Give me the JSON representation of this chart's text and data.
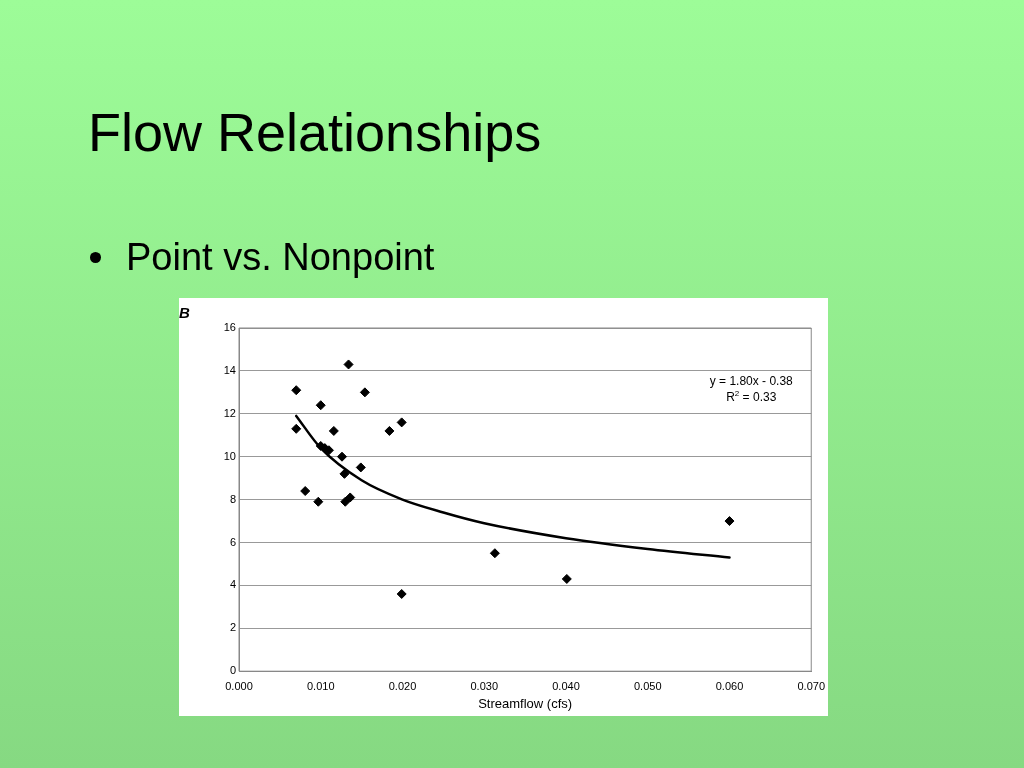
{
  "chart_data": {
    "type": "scatter",
    "title": "Flow Relationships",
    "subtitle": "Point vs. Nonpoint",
    "xlabel": "Streamflow (cfs)",
    "annotations": [
      "B",
      "y = 1.80x - 0.38",
      "R$^{2}$ = 0.33"
    ],
    "series": [
      {
        "type": "scatter",
        "color": "#000000",
        "marker": "diamond",
        "x": [
          0.007,
          0.007,
          0.0081,
          0.0097,
          0.01,
          0.01,
          0.0105,
          0.011,
          0.0116,
          0.0126,
          0.0129,
          0.013,
          0.0134,
          0.0136,
          0.0149,
          0.0154,
          0.0184,
          0.0199,
          0.0199,
          0.0313,
          0.0401,
          0.06
        ],
        "values": [
          13.1,
          11.3,
          8.4,
          7.9,
          12.4,
          10.5,
          10.4,
          10.3,
          11.2,
          10.0,
          9.2,
          7.9,
          14.3,
          8.1,
          9.5,
          13.0,
          11.2,
          11.6,
          3.6,
          5.5,
          4.3,
          7.0
        ]
      },
      {
        "type": "line",
        "color": "#000000",
        "marker": "none",
        "line_style": "solid",
        "x": [
          0.007,
          0.01,
          0.015,
          0.02,
          0.025,
          0.03,
          0.04,
          0.05,
          0.06
        ],
        "values": [
          11.9,
          10.4,
          8.9,
          8.0,
          7.4,
          6.9,
          6.2,
          5.7,
          5.3
        ]
      }
    ],
    "xlim": [
      0,
      0.07
    ],
    "xticks": [
      {
        "value": 0,
        "label": "0.000"
      },
      {
        "value": 0.01,
        "label": "0.010"
      },
      {
        "value": 0.02,
        "label": "0.020"
      },
      {
        "value": 0.03,
        "label": "0.030"
      },
      {
        "value": 0.04,
        "label": "0.040"
      },
      {
        "value": 0.05,
        "label": "0.050"
      },
      {
        "value": 0.06,
        "label": "0.060"
      },
      {
        "value": 0.07,
        "label": "0.070"
      }
    ],
    "ylim": [
      0,
      16
    ],
    "yticks": [
      0,
      2,
      4,
      6,
      8,
      10,
      12,
      14,
      16
    ],
    "grid": "y",
    "legend": false
  }
}
